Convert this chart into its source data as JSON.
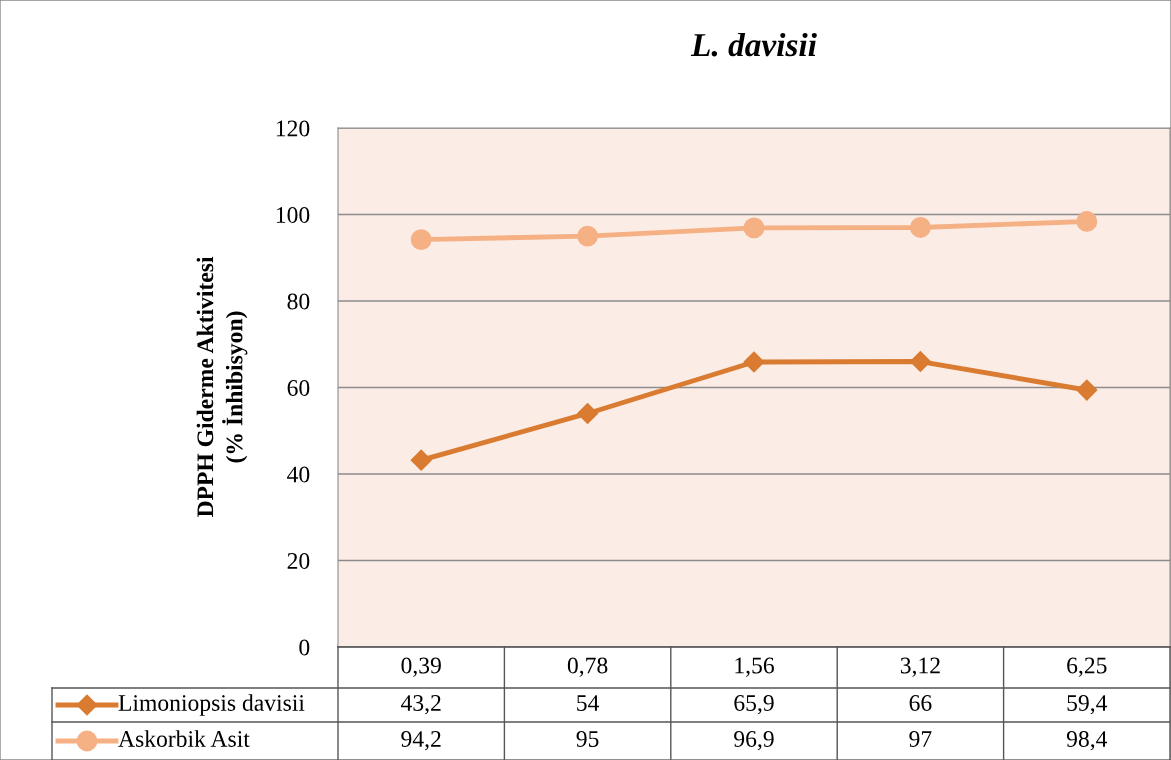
{
  "chart_data": {
    "type": "line",
    "title": "L. davisii",
    "ylabel": "DPPH Giderme Aktivitesi\n(% İnhibisyon)",
    "categories": [
      "0,39",
      "0,78",
      "1,56",
      "3,12",
      "6,25"
    ],
    "series": [
      {
        "name": "Limoniopsis davisii",
        "color": "#d97b30",
        "marker": "diamond",
        "values": [
          43.2,
          54,
          65.9,
          66,
          59.4
        ],
        "value_labels": [
          "43,2",
          "54",
          "65,9",
          "66",
          "59,4"
        ]
      },
      {
        "name": "Askorbik Asit",
        "color": "#f5b084",
        "marker": "circle",
        "values": [
          94.2,
          95,
          96.9,
          97,
          98.4
        ],
        "value_labels": [
          "94,2",
          "95",
          "96,9",
          "97",
          "98,4"
        ]
      }
    ],
    "ylim": [
      0,
      120
    ],
    "yticks": [
      0,
      20,
      40,
      60,
      80,
      100,
      120
    ],
    "grid": "y",
    "legend": "bottom",
    "line_style": "solid"
  }
}
